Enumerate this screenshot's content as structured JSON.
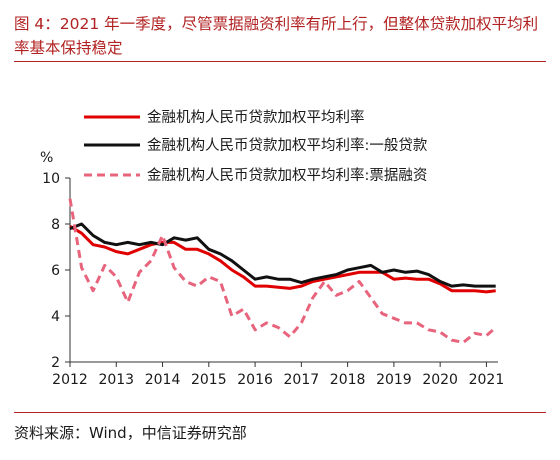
{
  "figure": {
    "title": "图 4：2021 年一季度，尽管票据融资利率有所上行，但整体贷款加权平均利率基本保持稳定",
    "source": "资料来源：Wind，中信证券研究部"
  },
  "chart_data": {
    "type": "line",
    "ylabel": "%",
    "ylim": [
      2,
      10
    ],
    "yticks": [
      2,
      4,
      6,
      8,
      10
    ],
    "xlim": [
      2012,
      2021.25
    ],
    "xticks": [
      "2012",
      "2013",
      "2014",
      "2015",
      "2016",
      "2017",
      "2018",
      "2019",
      "2020",
      "2021"
    ],
    "grid": false,
    "legend_position": "top",
    "series": [
      {
        "name": "金融机构人民币贷款加权平均利率",
        "color": "#e00000",
        "style": "solid",
        "x": [
          2012.0,
          2012.25,
          2012.5,
          2012.75,
          2013.0,
          2013.25,
          2013.5,
          2013.75,
          2014.0,
          2014.25,
          2014.5,
          2014.75,
          2015.0,
          2015.25,
          2015.5,
          2015.75,
          2016.0,
          2016.25,
          2016.5,
          2016.75,
          2017.0,
          2017.25,
          2017.5,
          2017.75,
          2018.0,
          2018.25,
          2018.5,
          2018.75,
          2019.0,
          2019.25,
          2019.5,
          2019.75,
          2020.0,
          2020.25,
          2020.5,
          2020.75,
          2021.0,
          2021.2
        ],
        "y": [
          7.9,
          7.6,
          7.1,
          7.0,
          6.8,
          6.7,
          6.9,
          7.1,
          7.2,
          7.2,
          6.9,
          6.9,
          6.7,
          6.4,
          6.0,
          5.7,
          5.3,
          5.3,
          5.25,
          5.2,
          5.3,
          5.5,
          5.6,
          5.7,
          5.8,
          5.9,
          5.9,
          5.9,
          5.6,
          5.65,
          5.6,
          5.6,
          5.4,
          5.1,
          5.1,
          5.1,
          5.05,
          5.1
        ]
      },
      {
        "name": "金融机构人民币贷款加权平均利率:一般贷款",
        "color": "#111111",
        "style": "solid",
        "x": [
          2012.0,
          2012.25,
          2012.5,
          2012.75,
          2013.0,
          2013.25,
          2013.5,
          2013.75,
          2014.0,
          2014.25,
          2014.5,
          2014.75,
          2015.0,
          2015.25,
          2015.5,
          2015.75,
          2016.0,
          2016.25,
          2016.5,
          2016.75,
          2017.0,
          2017.25,
          2017.5,
          2017.75,
          2018.0,
          2018.25,
          2018.5,
          2018.75,
          2019.0,
          2019.25,
          2019.5,
          2019.75,
          2020.0,
          2020.25,
          2020.5,
          2020.75,
          2021.0,
          2021.2
        ],
        "y": [
          7.8,
          8.0,
          7.5,
          7.2,
          7.1,
          7.2,
          7.1,
          7.2,
          7.1,
          7.4,
          7.3,
          7.4,
          6.9,
          6.7,
          6.4,
          6.0,
          5.6,
          5.7,
          5.6,
          5.6,
          5.45,
          5.6,
          5.7,
          5.8,
          6.0,
          6.1,
          6.2,
          5.9,
          6.0,
          5.9,
          5.95,
          5.8,
          5.5,
          5.3,
          5.35,
          5.3,
          5.3,
          5.3
        ]
      },
      {
        "name": "金融机构人民币贷款加权平均利率:票据融资",
        "color": "#e8647d",
        "style": "dashed",
        "x": [
          2012.0,
          2012.25,
          2012.5,
          2012.75,
          2013.0,
          2013.25,
          2013.5,
          2013.75,
          2014.0,
          2014.25,
          2014.5,
          2014.75,
          2015.0,
          2015.25,
          2015.5,
          2015.75,
          2016.0,
          2016.25,
          2016.5,
          2016.75,
          2017.0,
          2017.25,
          2017.5,
          2017.75,
          2018.0,
          2018.25,
          2018.5,
          2018.75,
          2019.0,
          2019.25,
          2019.5,
          2019.75,
          2020.0,
          2020.25,
          2020.5,
          2020.75,
          2021.0,
          2021.2
        ],
        "y": [
          9.1,
          6.1,
          5.1,
          6.2,
          5.7,
          4.6,
          5.9,
          6.4,
          7.5,
          6.1,
          5.5,
          5.3,
          5.7,
          5.5,
          4.0,
          4.3,
          3.4,
          3.7,
          3.5,
          3.1,
          3.7,
          4.8,
          5.5,
          4.9,
          5.1,
          5.5,
          4.8,
          4.1,
          3.9,
          3.7,
          3.7,
          3.4,
          3.3,
          2.95,
          2.85,
          3.25,
          3.15,
          3.5
        ]
      }
    ]
  }
}
